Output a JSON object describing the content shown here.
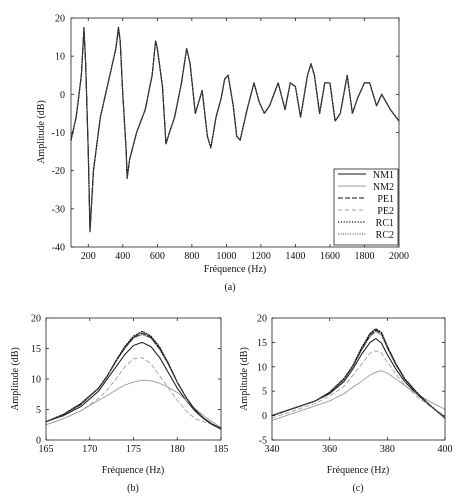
{
  "chart_data": [
    {
      "type": "line",
      "caption": "(a)",
      "xlabel": "Fréquence (Hz)",
      "ylabel": "Amplitude (dB)",
      "xlim": [
        100,
        2000
      ],
      "ylim": [
        -40,
        20
      ],
      "xticks": [
        200,
        400,
        600,
        800,
        1000,
        1200,
        1400,
        1600,
        1800,
        2000
      ],
      "yticks": [
        -40,
        -30,
        -20,
        -10,
        0,
        10,
        20
      ],
      "grid": false,
      "legend_position": "bottom-right",
      "colors": {
        "NM1": "#111111",
        "NM2": "#9a9a9a",
        "PE1": "#111111",
        "PE2": "#a0a0a0",
        "RC1": "#111111",
        "RC2": "#444444"
      },
      "x": [
        100,
        130,
        160,
        175,
        185,
        200,
        210,
        230,
        270,
        320,
        360,
        375,
        385,
        400,
        420,
        425,
        440,
        480,
        530,
        570,
        590,
        600,
        630,
        650,
        670,
        700,
        740,
        770,
        790,
        820,
        860,
        890,
        910,
        940,
        970,
        990,
        1010,
        1040,
        1060,
        1080,
        1120,
        1160,
        1190,
        1220,
        1250,
        1300,
        1340,
        1370,
        1400,
        1430,
        1470,
        1490,
        1510,
        1540,
        1570,
        1600,
        1630,
        1660,
        1700,
        1730,
        1760,
        1800,
        1830,
        1870,
        1900,
        1950,
        2000
      ],
      "series": [
        {
          "name": "NM1",
          "values": [
            -12,
            -6,
            5,
            17,
            8,
            -15,
            -36,
            -20,
            -6,
            4,
            12,
            17,
            14,
            0,
            -15,
            -22,
            -17,
            -10,
            -4,
            5,
            14,
            12,
            2,
            -13,
            -10,
            -6,
            3,
            12,
            8,
            -5,
            1,
            -11,
            -14,
            -6,
            -1,
            4,
            5,
            -3,
            -11,
            -12,
            -4,
            3,
            -2,
            -5,
            -3,
            3,
            -4,
            3,
            2,
            -6,
            5,
            8,
            5,
            -5,
            3,
            3,
            -7,
            -5,
            5,
            -5,
            -1,
            3,
            3,
            -3,
            0,
            -4,
            -7
          ]
        },
        {
          "name": "NM2",
          "values": [
            -12,
            -6,
            5,
            16.5,
            8,
            -15,
            -35,
            -20,
            -6,
            4,
            12,
            16.5,
            14,
            0,
            -15,
            -22,
            -17,
            -10,
            -4,
            5,
            14,
            12,
            2,
            -13,
            -10,
            -6,
            3,
            12,
            8,
            -5,
            1,
            -11,
            -14,
            -6,
            -1,
            4,
            5,
            -3,
            -11,
            -12,
            -4,
            3,
            -2,
            -5,
            -3,
            3,
            -4,
            3,
            2,
            -6,
            5,
            8,
            5,
            -5,
            3,
            3,
            -7,
            -5,
            5,
            -5,
            -1,
            3,
            3,
            -3,
            0,
            -4,
            -7
          ]
        },
        {
          "name": "PE1",
          "values": [
            -12,
            -6,
            5,
            17.5,
            8,
            -15,
            -36,
            -20,
            -6,
            4,
            12,
            17.5,
            14,
            0,
            -15,
            -22,
            -17,
            -10,
            -4,
            5,
            14,
            12,
            2,
            -13,
            -10,
            -6,
            3,
            12,
            8,
            -5,
            1,
            -11,
            -14,
            -6,
            -1,
            4,
            5,
            -3,
            -11,
            -12,
            -4,
            3,
            -2,
            -5,
            -3,
            3,
            -4,
            3,
            2,
            -6,
            5,
            8,
            5,
            -5,
            3,
            3,
            -7,
            -5,
            5,
            -5,
            -1,
            3,
            3,
            -3,
            0,
            -4,
            -7
          ]
        },
        {
          "name": "PE2",
          "values": [
            -12,
            -6,
            5,
            17,
            8,
            -15,
            -36,
            -20,
            -6,
            4,
            12,
            17,
            14,
            0,
            -15,
            -22,
            -17,
            -10,
            -4,
            5,
            14,
            12,
            2,
            -13,
            -10,
            -6,
            3,
            12,
            8,
            -5,
            1,
            -11,
            -14,
            -6,
            -1,
            4,
            5,
            -3,
            -11,
            -12,
            -4,
            3,
            -2,
            -5,
            -3,
            3,
            -4,
            3,
            2,
            -6,
            5,
            8,
            5,
            -5,
            3,
            3,
            -7,
            -5,
            5,
            -5,
            -1,
            3,
            3,
            -3,
            0,
            -4,
            -7
          ]
        },
        {
          "name": "RC1",
          "values": [
            -12,
            -6,
            5,
            17.5,
            8,
            -15,
            -36,
            -20,
            -6,
            4,
            12,
            17.5,
            14,
            0,
            -15,
            -22,
            -17,
            -10,
            -4,
            5,
            14,
            12,
            2,
            -13,
            -10,
            -6,
            3,
            12,
            8,
            -5,
            1,
            -11,
            -14,
            -6,
            -1,
            4,
            5,
            -3,
            -11,
            -12,
            -4,
            3,
            -2,
            -5,
            -3,
            3,
            -4,
            3,
            2,
            -6,
            5,
            8,
            5,
            -5,
            3,
            3,
            -7,
            -5,
            5,
            -5,
            -1,
            3,
            3,
            -3,
            0,
            -4,
            -7
          ]
        },
        {
          "name": "RC2",
          "values": [
            -12,
            -6,
            5,
            17,
            8,
            -15,
            -36,
            -20,
            -6,
            4,
            12,
            17,
            14,
            0,
            -15,
            -22,
            -17,
            -10,
            -4,
            5,
            14,
            12,
            2,
            -13,
            -10,
            -6,
            3,
            12,
            8,
            -5,
            1,
            -11,
            -14,
            -6,
            -1,
            4,
            5,
            -3,
            -11,
            -12,
            -4,
            3,
            -2,
            -5,
            -3,
            3,
            -4,
            3,
            2,
            -6,
            5,
            8,
            5,
            -5,
            3,
            3,
            -7,
            -5,
            5,
            -5,
            -1,
            3,
            3,
            -3,
            0,
            -4,
            -7
          ]
        }
      ]
    },
    {
      "type": "line",
      "caption": "(b)",
      "xlabel": "Fréquence (Hz)",
      "ylabel": "Amplitude (dB)",
      "xlim": [
        165,
        185
      ],
      "ylim": [
        0,
        20
      ],
      "xticks": [
        165,
        170,
        175,
        180,
        185
      ],
      "yticks": [
        0,
        5,
        10,
        15,
        20
      ],
      "grid": false,
      "x": [
        165,
        167,
        169,
        171,
        172,
        173,
        174,
        175,
        176,
        177,
        178,
        179,
        180,
        181,
        182,
        183,
        184,
        185
      ],
      "series": [
        {
          "name": "NM1",
          "values": [
            3,
            4,
            5.5,
            8,
            10,
            12,
            14,
            15.5,
            16,
            15.3,
            13.5,
            11,
            8.5,
            6.5,
            4.8,
            3.5,
            2.5,
            1.8
          ]
        },
        {
          "name": "NM2",
          "values": [
            2.5,
            3.5,
            4.8,
            6.5,
            7.3,
            8.2,
            9,
            9.5,
            9.8,
            9.7,
            9.3,
            8.6,
            7.8,
            6.5,
            5.2,
            4,
            3,
            2
          ]
        },
        {
          "name": "PE1",
          "values": [
            3,
            4.2,
            5.8,
            8.5,
            10.5,
            13,
            15,
            16.8,
            17.5,
            16.8,
            15,
            12.5,
            9.5,
            7,
            5,
            3.6,
            2.6,
            1.9
          ]
        },
        {
          "name": "PE2",
          "values": [
            2.5,
            3.5,
            4.8,
            6.8,
            8.2,
            10,
            12,
            13.3,
            13.5,
            12.5,
            10.5,
            8.5,
            6.5,
            4.8,
            3.5,
            3,
            2.5,
            2
          ]
        },
        {
          "name": "RC1",
          "values": [
            3,
            4.2,
            6,
            8.5,
            10.5,
            13,
            15.3,
            17,
            17.8,
            17,
            15.2,
            12.5,
            9.5,
            7,
            5,
            3.6,
            2.6,
            1.9
          ]
        },
        {
          "name": "RC2",
          "values": [
            3,
            4.1,
            5.9,
            8.4,
            10.4,
            12.8,
            15,
            16.7,
            17.3,
            16.7,
            14.8,
            12.3,
            9.4,
            6.9,
            4.9,
            3.5,
            2.5,
            1.8
          ]
        }
      ]
    },
    {
      "type": "line",
      "caption": "(c)",
      "xlabel": "Fréquence (Hz)",
      "ylabel": "Amplitude (dB)",
      "xlim": [
        340,
        400
      ],
      "ylim": [
        -5,
        20
      ],
      "xticks": [
        340,
        360,
        380,
        400
      ],
      "yticks": [
        -5,
        0,
        5,
        10,
        15,
        20
      ],
      "grid": false,
      "x": [
        340,
        345,
        350,
        355,
        360,
        365,
        368,
        371,
        374,
        376,
        378,
        380,
        383,
        386,
        390,
        395,
        400
      ],
      "series": [
        {
          "name": "NM1",
          "values": [
            0,
            1,
            2,
            3,
            4.5,
            7,
            9.5,
            12.5,
            15,
            15.8,
            14.8,
            12.5,
            9.5,
            7,
            4.5,
            2,
            -0.5
          ]
        },
        {
          "name": "NM2",
          "values": [
            -1,
            0,
            1,
            2,
            3,
            4.5,
            5.8,
            7,
            8.3,
            8.9,
            9.2,
            8.7,
            7.5,
            6.2,
            4.5,
            2.8,
            1.3
          ]
        },
        {
          "name": "PE1",
          "values": [
            0,
            1,
            2,
            3,
            4.7,
            7.5,
            10,
            13.5,
            16.5,
            17.5,
            16.8,
            14,
            10.5,
            7.5,
            4.8,
            2,
            -0.5
          ]
        },
        {
          "name": "PE2",
          "values": [
            -0.5,
            0.5,
            1.5,
            2.5,
            4,
            6,
            8.2,
            10.5,
            12.8,
            13.3,
            12.8,
            11,
            8.5,
            6.3,
            4,
            1.8,
            0
          ]
        },
        {
          "name": "RC1",
          "values": [
            0,
            1,
            2,
            3,
            4.8,
            7.6,
            10.2,
            13.8,
            16.8,
            17.8,
            17,
            14.2,
            10.6,
            7.6,
            4.9,
            2,
            -0.5
          ]
        },
        {
          "name": "RC2",
          "values": [
            0,
            1,
            2,
            3,
            4.7,
            7.4,
            10,
            13.3,
            16.2,
            17.2,
            16.5,
            13.8,
            10.3,
            7.4,
            4.7,
            2,
            -0.5
          ]
        }
      ]
    }
  ]
}
